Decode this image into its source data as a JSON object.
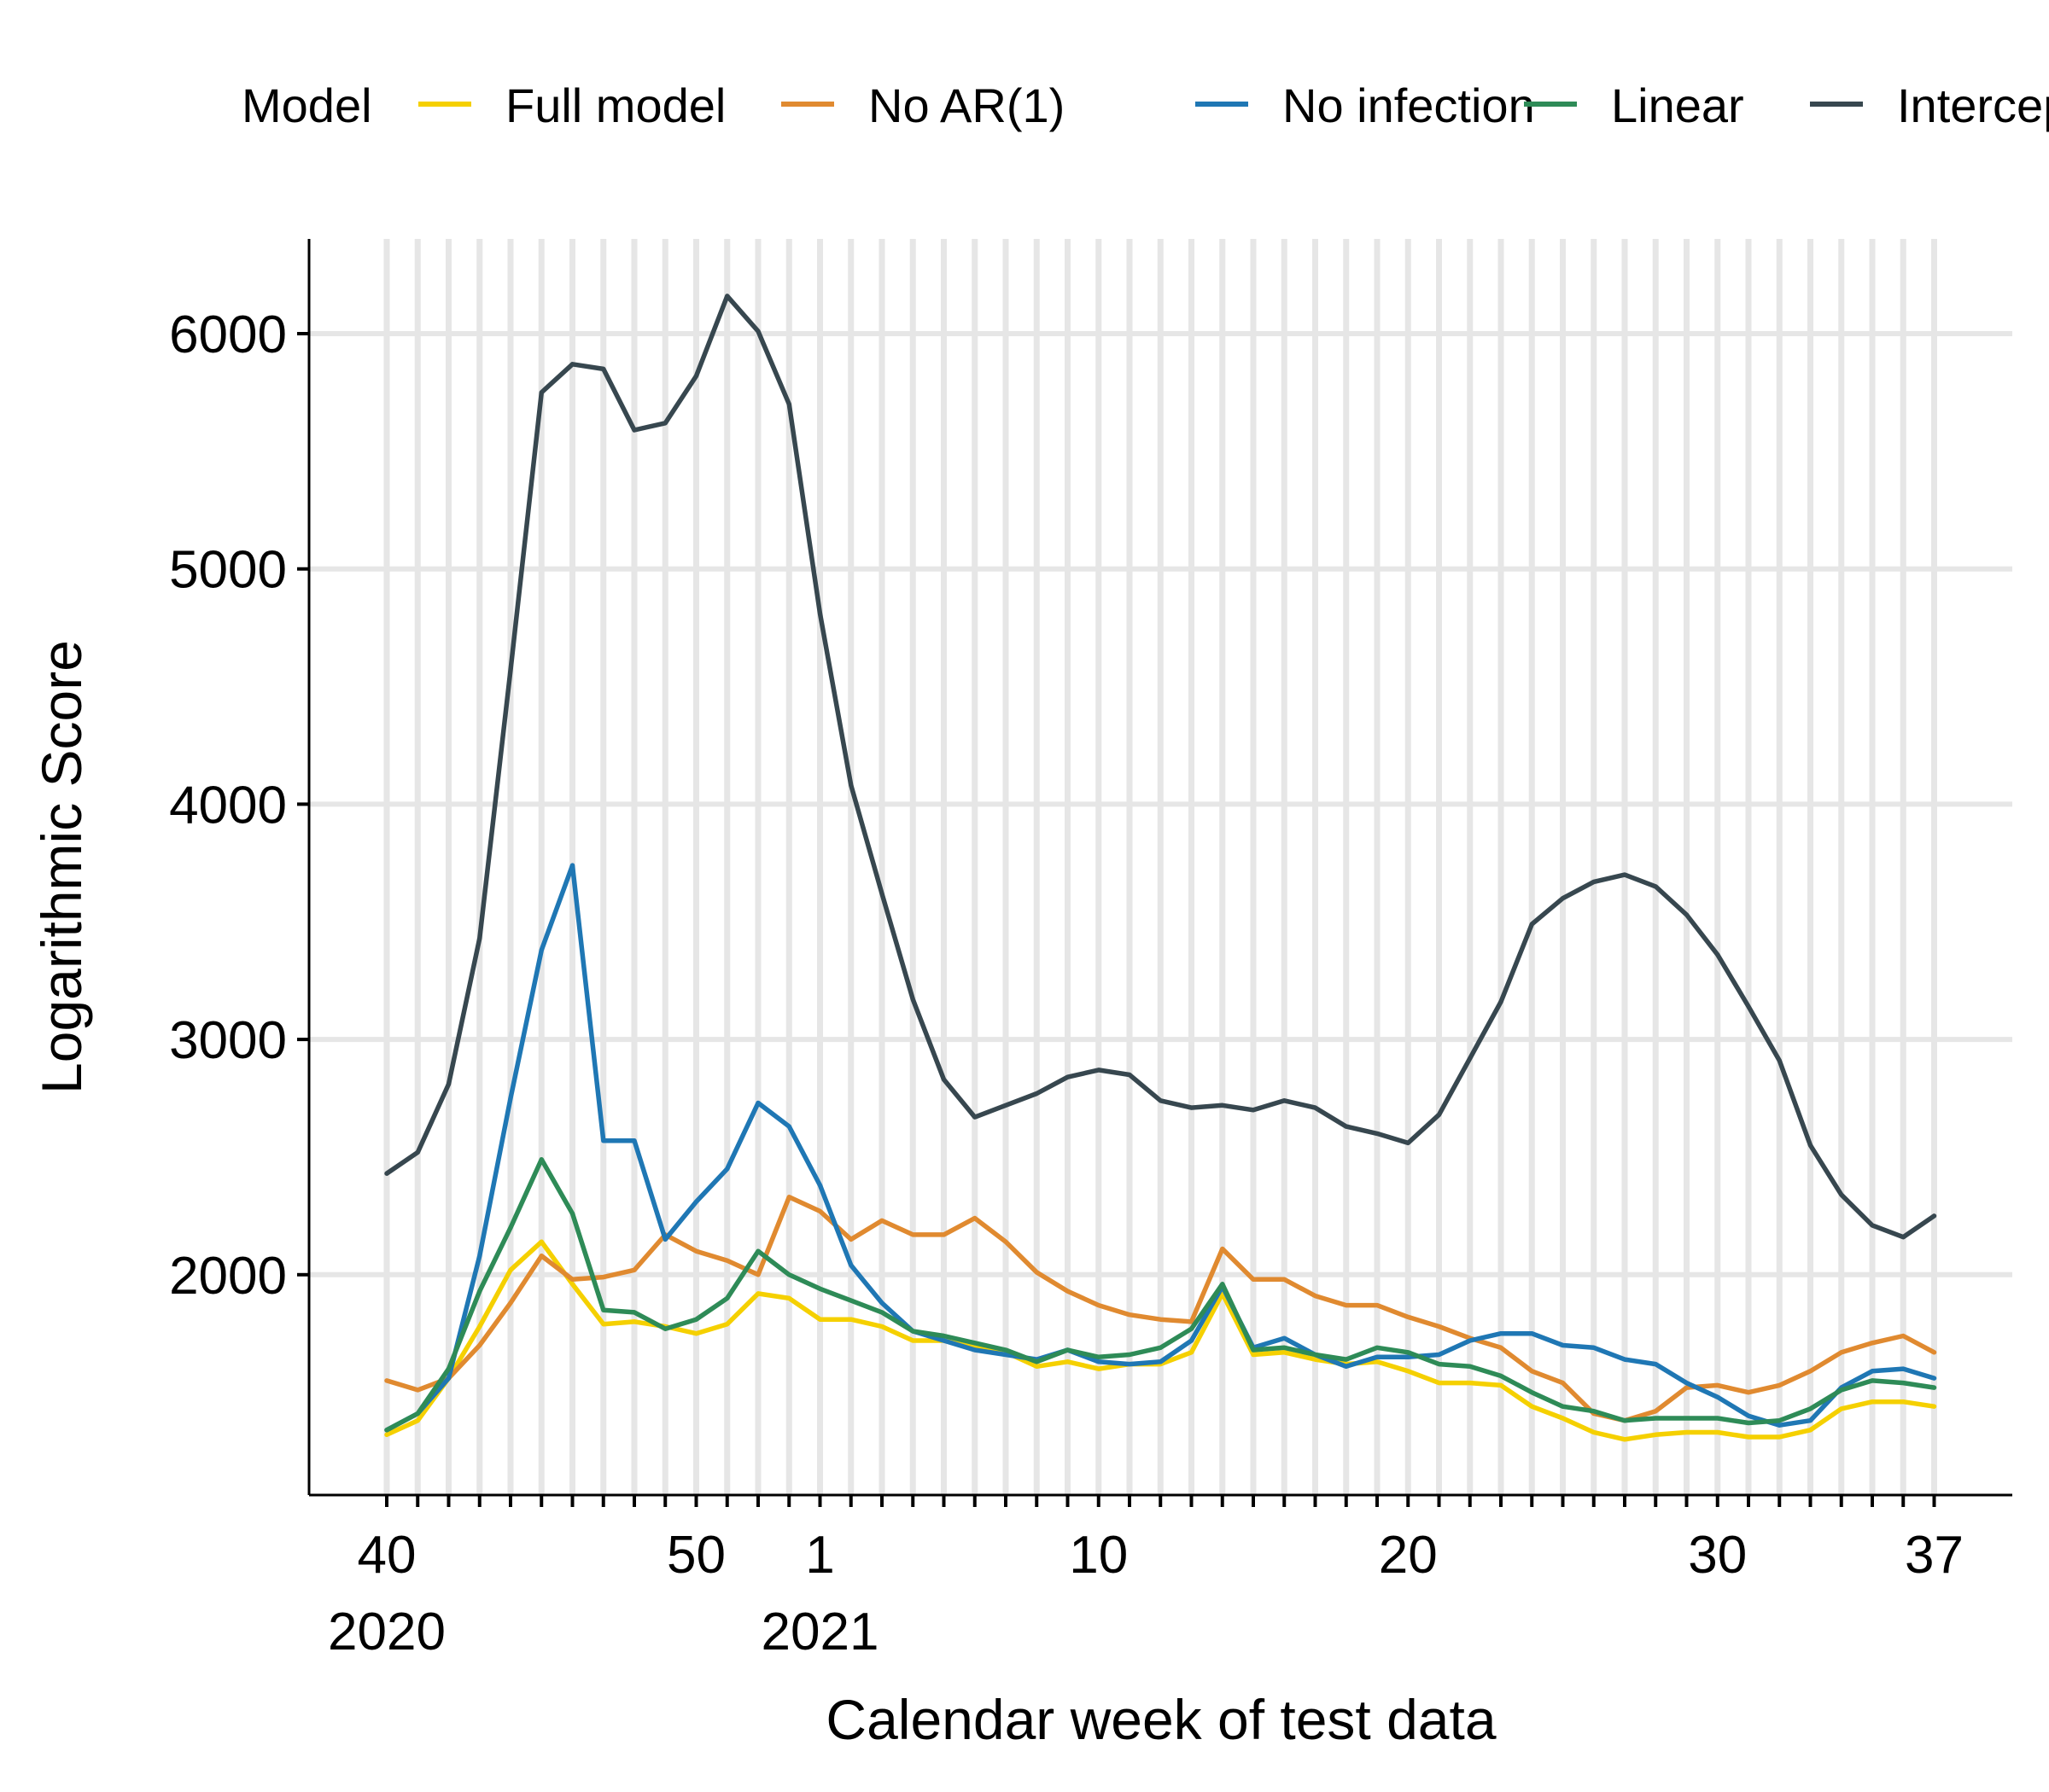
{
  "chart_data": {
    "type": "line",
    "title": "",
    "xlabel": "Calendar week of test data",
    "ylabel": "Logarithmic Score",
    "ylim": [
      1100,
      6400
    ],
    "yticks": [
      2000,
      3000,
      4000,
      5000,
      6000
    ],
    "xticks": [
      {
        "week": "40",
        "year": "2020"
      },
      {
        "week": "50",
        "year": ""
      },
      {
        "week": "1",
        "year": "2021"
      },
      {
        "week": "10",
        "year": ""
      },
      {
        "week": "20",
        "year": ""
      },
      {
        "week": "30",
        "year": ""
      },
      {
        "week": "37",
        "year": ""
      }
    ],
    "grid": "vertical per week, horizontal at y ticks",
    "legend": {
      "title": "Model",
      "position": "top"
    },
    "x": [
      "2020-40",
      "2020-41",
      "2020-42",
      "2020-43",
      "2020-44",
      "2020-45",
      "2020-46",
      "2020-47",
      "2020-48",
      "2020-49",
      "2020-50",
      "2020-51",
      "2020-52",
      "2020-53",
      "2021-01",
      "2021-02",
      "2021-03",
      "2021-04",
      "2021-05",
      "2021-06",
      "2021-07",
      "2021-08",
      "2021-09",
      "2021-10",
      "2021-11",
      "2021-12",
      "2021-13",
      "2021-14",
      "2021-15",
      "2021-16",
      "2021-17",
      "2021-18",
      "2021-19",
      "2021-20",
      "2021-21",
      "2021-22",
      "2021-23",
      "2021-24",
      "2021-25",
      "2021-26",
      "2021-27",
      "2021-28",
      "2021-29",
      "2021-30",
      "2021-31",
      "2021-32",
      "2021-33",
      "2021-34",
      "2021-35",
      "2021-36",
      "2021-37"
    ],
    "series": [
      {
        "name": "Full model",
        "color": "#F5D000",
        "values": [
          1320,
          1380,
          1560,
          1780,
          2020,
          2140,
          1960,
          1790,
          1800,
          1780,
          1750,
          1790,
          1920,
          1900,
          1810,
          1810,
          1780,
          1720,
          1720,
          1690,
          1670,
          1610,
          1630,
          1600,
          1620,
          1620,
          1670,
          1920,
          1660,
          1670,
          1640,
          1620,
          1630,
          1590,
          1540,
          1540,
          1530,
          1440,
          1390,
          1330,
          1300,
          1320,
          1330,
          1330,
          1310,
          1310,
          1340,
          1430,
          1460,
          1460,
          1440
        ]
      },
      {
        "name": "No AR(1)",
        "color": "#E08A30",
        "values": [
          1550,
          1510,
          1560,
          1700,
          1880,
          2080,
          1980,
          1990,
          2020,
          2170,
          2100,
          2060,
          2000,
          2330,
          2270,
          2150,
          2230,
          2170,
          2170,
          2240,
          2140,
          2010,
          1930,
          1870,
          1830,
          1810,
          1800,
          2110,
          1980,
          1980,
          1910,
          1870,
          1870,
          1820,
          1780,
          1730,
          1690,
          1590,
          1540,
          1410,
          1380,
          1420,
          1520,
          1530,
          1500,
          1530,
          1590,
          1670,
          1710,
          1740,
          1670
        ]
      },
      {
        "name": "No infection",
        "color": "#1F77B4",
        "values": [
          1340,
          1410,
          1560,
          2080,
          2750,
          3380,
          3740,
          2570,
          2570,
          2150,
          2310,
          2450,
          2730,
          2630,
          2380,
          2040,
          1880,
          1760,
          1720,
          1680,
          1660,
          1640,
          1680,
          1630,
          1620,
          1630,
          1720,
          1950,
          1690,
          1730,
          1660,
          1610,
          1650,
          1650,
          1660,
          1720,
          1750,
          1750,
          1700,
          1690,
          1640,
          1620,
          1540,
          1480,
          1400,
          1360,
          1380,
          1520,
          1590,
          1600,
          1560
        ]
      },
      {
        "name": "Linear",
        "color": "#2E8B57",
        "values": [
          1340,
          1410,
          1600,
          1930,
          2200,
          2490,
          2260,
          1850,
          1840,
          1770,
          1810,
          1900,
          2100,
          2000,
          1940,
          1890,
          1840,
          1760,
          1740,
          1710,
          1680,
          1630,
          1680,
          1650,
          1660,
          1690,
          1770,
          1960,
          1680,
          1690,
          1660,
          1640,
          1690,
          1670,
          1620,
          1610,
          1570,
          1500,
          1440,
          1420,
          1380,
          1390,
          1390,
          1390,
          1370,
          1380,
          1430,
          1510,
          1550,
          1540,
          1520
        ]
      },
      {
        "name": "Intercept",
        "color": "#37474F",
        "values": [
          2430,
          2520,
          2810,
          3430,
          4570,
          5750,
          5870,
          5850,
          5590,
          5620,
          5820,
          6160,
          6010,
          5700,
          4810,
          4080,
          3620,
          3170,
          2830,
          2670,
          2720,
          2770,
          2840,
          2870,
          2850,
          2740,
          2710,
          2720,
          2700,
          2740,
          2710,
          2630,
          2600,
          2560,
          2680,
          2920,
          3160,
          3490,
          3600,
          3670,
          3700,
          3650,
          3530,
          3360,
          3140,
          2910,
          2550,
          2340,
          2210,
          2160,
          2250
        ]
      }
    ]
  }
}
